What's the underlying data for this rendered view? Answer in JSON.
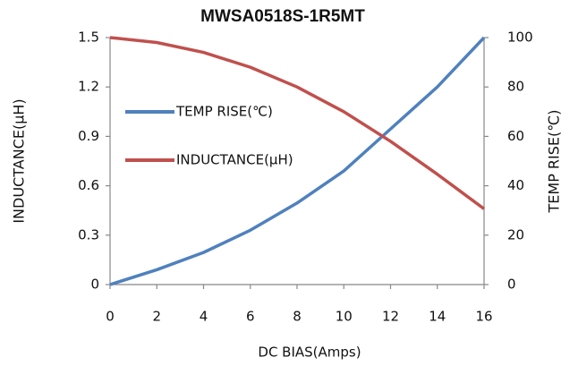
{
  "chart_data": {
    "type": "line",
    "title": "MWSA0518S-1R5MT",
    "x_label": "DC  BIAS(Amps)",
    "y_label": "INDUCTANCE(μH)",
    "y2_label": "TEMP RISE(℃)",
    "x": [
      0,
      2,
      4,
      6,
      8,
      10,
      12,
      14,
      16
    ],
    "xlim": [
      0,
      16
    ],
    "xticks": [
      0,
      2,
      4,
      6,
      8,
      10,
      12,
      14,
      16
    ],
    "ylim": [
      0,
      1.5
    ],
    "yticks": [
      0,
      0.3,
      0.6,
      0.9,
      1.2,
      1.5
    ],
    "y2lim": [
      0,
      100
    ],
    "y2ticks": [
      0,
      20,
      40,
      60,
      80,
      100
    ],
    "grid": false,
    "legend": "left",
    "series": [
      {
        "name": "TEMP RISE(℃)",
        "color": "#4f81bd",
        "axis": "y2",
        "values": [
          0,
          6,
          13,
          22,
          33,
          46,
          63,
          80,
          100
        ]
      },
      {
        "name": "INDUCTANCE(μH)",
        "color": "#c0504d",
        "values": [
          1.5,
          1.47,
          1.41,
          1.32,
          1.2,
          1.05,
          0.87,
          0.67,
          0.46
        ]
      }
    ]
  }
}
